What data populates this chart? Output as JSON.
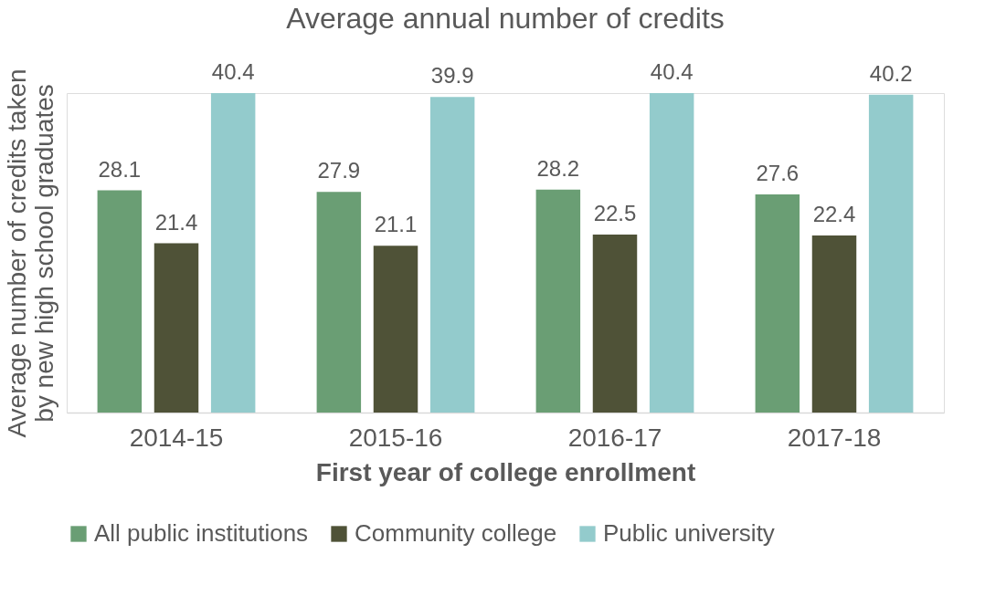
{
  "chart_data": {
    "type": "bar",
    "title": "Average annual number of credits",
    "xlabel": "First year of college enrollment",
    "ylabel": "Average number of credits taken by new high school graduates",
    "categories": [
      "2014-15",
      "2015-16",
      "2016-17",
      "2017-18"
    ],
    "series": [
      {
        "name": "All public institutions",
        "color": "#6a9e74",
        "values": [
          28.1,
          27.9,
          28.2,
          27.6
        ]
      },
      {
        "name": "Community college",
        "color": "#4f5237",
        "values": [
          21.4,
          21.1,
          22.5,
          22.4
        ]
      },
      {
        "name": "Public university",
        "color": "#93cbcc",
        "values": [
          40.4,
          39.9,
          40.4,
          40.2
        ]
      }
    ],
    "data_labels": true,
    "legend": "bottom",
    "grid": false,
    "tick_labels": "x"
  }
}
